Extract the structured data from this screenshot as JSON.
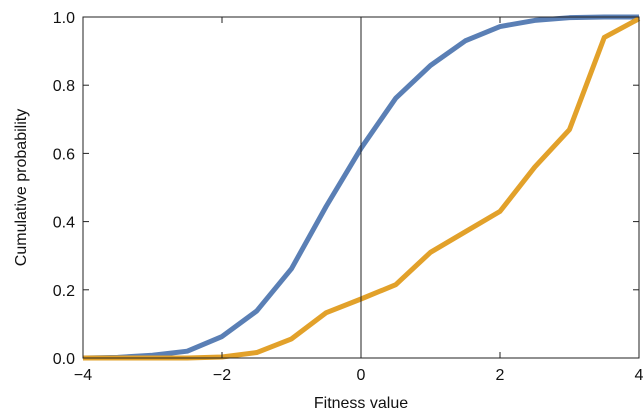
{
  "chart_data": {
    "type": "line",
    "xlabel": "Fitness value",
    "ylabel": "Cumulative probability",
    "xlim": [
      -4,
      4
    ],
    "ylim": [
      0,
      1
    ],
    "xticks": [
      -4,
      -2,
      0,
      2,
      4
    ],
    "xtick_labels": [
      "−4",
      "−2",
      "0",
      "2",
      "4"
    ],
    "yticks": [
      0,
      0.2,
      0.4,
      0.6,
      0.8,
      1.0
    ],
    "ytick_labels": [
      "0.0",
      "0.2",
      "0.4",
      "0.6",
      "0.8",
      "1.0"
    ],
    "grid": false,
    "reference_line_x": 0,
    "series": [
      {
        "color": "#5a7fb5",
        "x": [
          -4,
          -3.5,
          -3,
          -2.5,
          -2,
          -1.5,
          -1,
          -0.5,
          0,
          0.5,
          1,
          1.5,
          2,
          2.5,
          3,
          3.5,
          4
        ],
        "values": [
          0.0,
          0.002,
          0.008,
          0.02,
          0.063,
          0.138,
          0.262,
          0.445,
          0.615,
          0.762,
          0.858,
          0.93,
          0.972,
          0.99,
          0.998,
          1.0,
          1.0
        ]
      },
      {
        "color": "#e2a12a",
        "x": [
          -4,
          -3.5,
          -3,
          -2.5,
          -2,
          -1.5,
          -1,
          -0.5,
          0,
          0.5,
          1,
          1.5,
          2,
          2.5,
          3,
          3.5,
          4
        ],
        "values": [
          0.0,
          0.0,
          0.0,
          0.0,
          0.003,
          0.016,
          0.056,
          0.133,
          0.173,
          0.215,
          0.31,
          0.37,
          0.43,
          0.56,
          0.67,
          0.94,
          0.995
        ]
      }
    ]
  }
}
